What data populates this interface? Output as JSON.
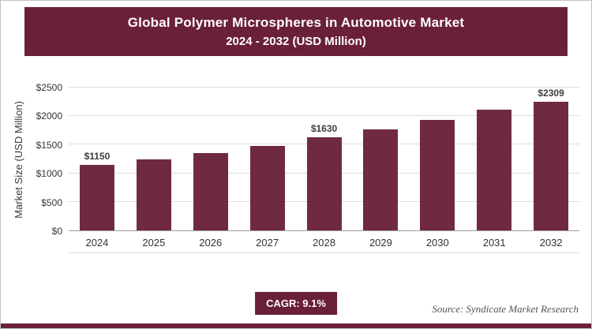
{
  "header": {
    "title_line1": "Global Polymer Microspheres in Automotive Market",
    "title_line2": "2024 - 2032 (USD Million)"
  },
  "chart_data": {
    "type": "bar",
    "title": "Global Polymer Microspheres in Automotive Market 2024 - 2032 (USD Million)",
    "categories": [
      "2024",
      "2025",
      "2026",
      "2027",
      "2028",
      "2029",
      "2030",
      "2031",
      "2032"
    ],
    "values": [
      1150,
      1250,
      1360,
      1480,
      1630,
      1775,
      1930,
      2110,
      2309
    ],
    "data_labels": [
      "$1150",
      "",
      "",
      "",
      "$1630",
      "",
      "",
      "",
      "$2309"
    ],
    "xlabel": "",
    "ylabel": "Market Size (USD Million)",
    "ylim": [
      0,
      2500
    ],
    "ytick_step": 500,
    "yticks": [
      "$0",
      "$500",
      "$1000",
      "$1500",
      "$2000",
      "$2500"
    ],
    "grid": true,
    "legend": false,
    "bar_color": "#6f2a42"
  },
  "footer": {
    "cagr_label": "CAGR: 9.1%",
    "source": "Source: Syndicate Market Research"
  },
  "colors": {
    "accent": "#6b2039",
    "grid": "#dcdcdc",
    "axis_text": "#333333"
  }
}
